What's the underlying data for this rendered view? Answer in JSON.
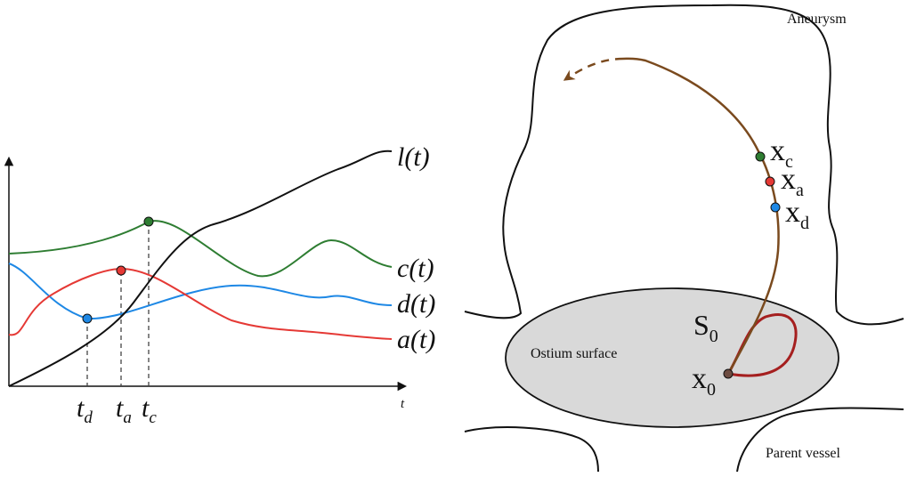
{
  "left_plot": {
    "axis_label_t": "t",
    "curves": [
      {
        "id": "l",
        "label": "l(t)",
        "color": "#111111"
      },
      {
        "id": "c",
        "label": "c(t)",
        "color": "#2e7d32"
      },
      {
        "id": "d",
        "label": "d(t)",
        "color": "#1e88e5"
      },
      {
        "id": "a",
        "label": "a(t)",
        "color": "#e53935"
      }
    ],
    "markers": [
      {
        "id": "d",
        "label_base": "t",
        "label_sub": "d",
        "color": "#1e88e5"
      },
      {
        "id": "a",
        "label_base": "t",
        "label_sub": "a",
        "color": "#e53935"
      },
      {
        "id": "c",
        "label_base": "t",
        "label_sub": "c",
        "color": "#2e7d32"
      }
    ]
  },
  "right_diagram": {
    "aneurysm_label": "Aneurysm",
    "ostium_label": "Ostium surface",
    "parent_vessel_label": "Parent vessel",
    "s0": {
      "base": "S",
      "sub": "0"
    },
    "points": [
      {
        "id": "xc",
        "base": "x",
        "sub": "c",
        "color": "#2e7d32"
      },
      {
        "id": "xa",
        "base": "x",
        "sub": "a",
        "color": "#e53935"
      },
      {
        "id": "xd",
        "base": "x",
        "sub": "d",
        "color": "#1e88e5"
      },
      {
        "id": "x0",
        "base": "x",
        "sub": "0",
        "color": "#6d4c41"
      }
    ],
    "colors": {
      "outline": "#111111",
      "trajectory": "#7a4a1e",
      "s0_loop": "#a51f1f",
      "ostium_fill": "#d9d9d9"
    }
  }
}
